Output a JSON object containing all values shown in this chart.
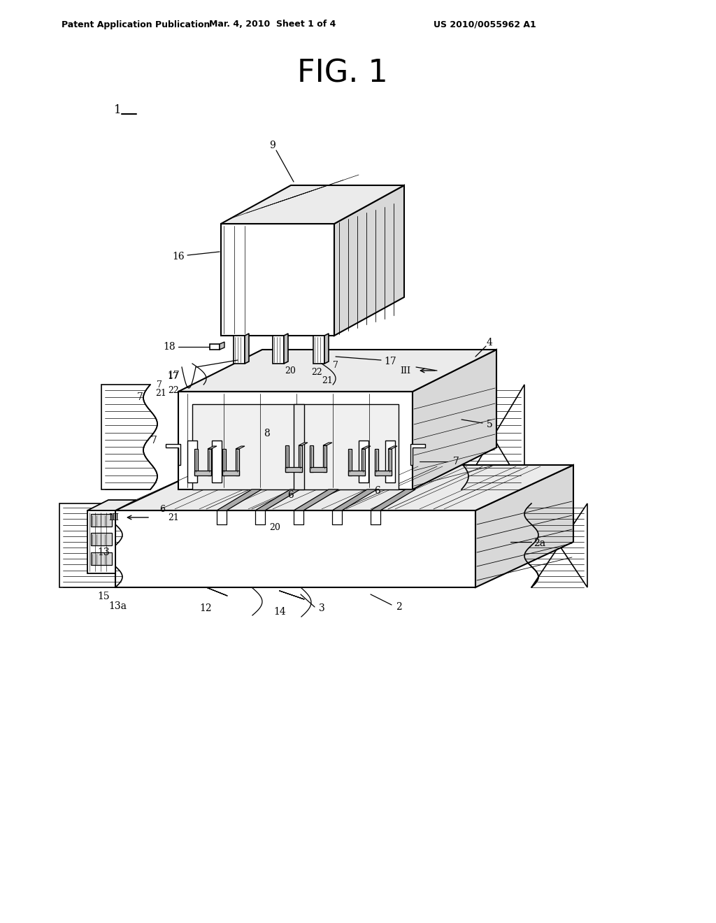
{
  "bg_color": "#ffffff",
  "header_left": "Patent Application Publication",
  "header_mid": "Mar. 4, 2010  Sheet 1 of 4",
  "header_right": "US 2010/0055962 A1",
  "fig_title": "FIG. 1",
  "line_color": "#000000",
  "lw_main": 1.4,
  "lw_thin": 0.7,
  "shade_dark": "#c0c0c0",
  "shade_med": "#d8d8d8",
  "shade_light": "#ebebeb",
  "face_white": "#ffffff",
  "face_gray": "#b8b8b8"
}
